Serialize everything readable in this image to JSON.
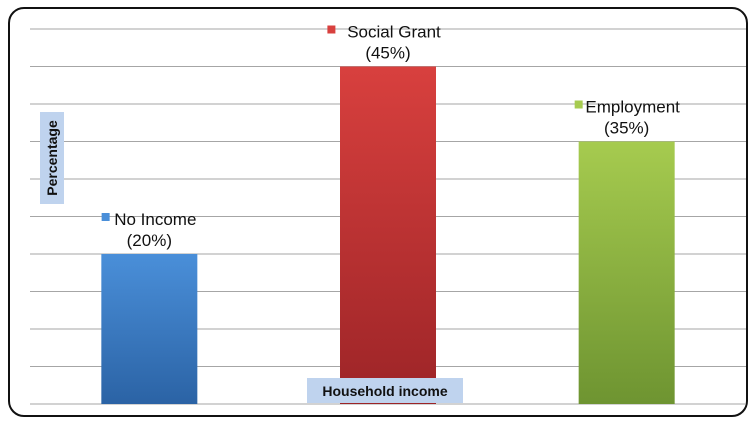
{
  "chart_data": {
    "type": "bar",
    "title": "",
    "xlabel": "Household income",
    "ylabel": "Percentage",
    "categories": [
      "No Income",
      "Social Grant",
      "Employment"
    ],
    "values": [
      20,
      45,
      35
    ],
    "value_labels": [
      "(20%)",
      "(45%)",
      "(35%)"
    ],
    "ylim": [
      0,
      50
    ],
    "grid": true,
    "legend": "inline-markers",
    "colors": {
      "No Income": {
        "top": "#4A8FD9",
        "bottom": "#2B63A5"
      },
      "Social Grant": {
        "top": "#D8403E",
        "bottom": "#9C2427"
      },
      "Employment": {
        "top": "#A6CB4F",
        "bottom": "#6E9431"
      },
      "axis_title_background": "#BFD3EE",
      "grid": "#A6A6A6"
    }
  }
}
